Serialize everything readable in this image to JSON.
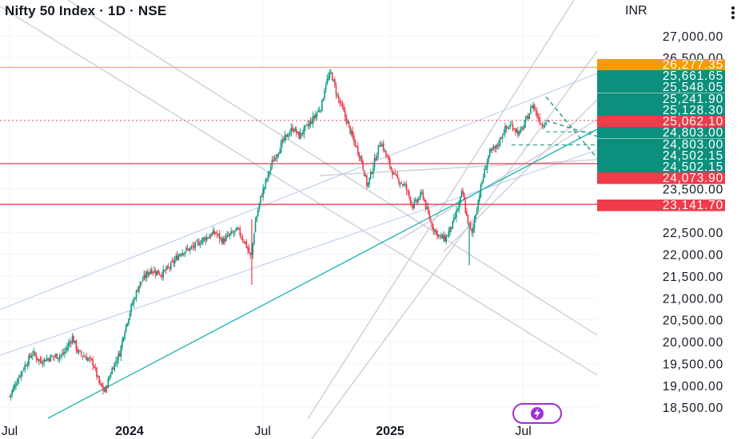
{
  "header": {
    "title": "Nifty 50 Index · 1D · NSE",
    "currency": "INR"
  },
  "chart_data": {
    "type": "candlestick",
    "title": "Nifty 50 Index · 1D · NSE",
    "xlabel": "",
    "ylabel": "",
    "ylim": [
      18500,
      27150
    ],
    "y_ticks": [
      18500,
      19000,
      19500,
      20000,
      20500,
      21000,
      21500,
      22000,
      22500,
      23500,
      26500,
      27000
    ],
    "y_tick_labels": [
      "18,500.00",
      "19,000.00",
      "19,500.00",
      "20,000.00",
      "20,500.00",
      "21,000.00",
      "21,500.00",
      "22,000.00",
      "22,500.00",
      "23,500.00",
      "26,500.00",
      "27,000.00"
    ],
    "x_tick_labels": [
      {
        "label": "Jul",
        "t": 0.0,
        "bold": false
      },
      {
        "label": "2024",
        "t": 0.315,
        "bold": true
      },
      {
        "label": "Jul",
        "t": 0.665,
        "bold": false
      },
      {
        "label": "2025",
        "t": 1.0,
        "bold": true
      },
      {
        "label": "Jul",
        "t": 1.35,
        "bold": false
      }
    ],
    "price_labels": [
      {
        "value": "26,277.35",
        "color": "#f59a0c"
      },
      {
        "value": "25,661.65",
        "color": "#0c8f7c"
      },
      {
        "value": "25,548.05",
        "color": "#0c8f7c"
      },
      {
        "value": "25,241.90",
        "color": "#0c8f7c"
      },
      {
        "value": "25,128.30",
        "color": "#0c8f7c"
      },
      {
        "value": "25,062.10",
        "color": "#ef3b4a"
      },
      {
        "value": "24,803.00",
        "color": "#0c8f7c"
      },
      {
        "value": "24,803.00",
        "color": "#0c8f7c"
      },
      {
        "value": "24,502.15",
        "color": "#0c8f7c"
      },
      {
        "value": "24,502.15",
        "color": "#0c8f7c"
      },
      {
        "value": "24,073.90",
        "color": "#ef3b4a"
      },
      {
        "value": "23,141.70",
        "color": "#ef3b4a"
      }
    ],
    "horizontal_levels": [
      {
        "value": 26277.35,
        "color": "#f6b94a",
        "style": "solid"
      },
      {
        "value": 25062.1,
        "color": "#ef3b4a",
        "style": "dotted"
      },
      {
        "value": 24073.9,
        "color": "#ef3b4a",
        "style": "solid"
      },
      {
        "value": 23141.7,
        "color": "#ef3b4a",
        "style": "solid"
      }
    ],
    "price_path": [
      [
        0.0,
        18750
      ],
      [
        0.03,
        19300
      ],
      [
        0.06,
        19750
      ],
      [
        0.08,
        19550
      ],
      [
        0.11,
        19650
      ],
      [
        0.14,
        19700
      ],
      [
        0.165,
        20100
      ],
      [
        0.18,
        19750
      ],
      [
        0.2,
        19650
      ],
      [
        0.22,
        19500
      ],
      [
        0.235,
        19050
      ],
      [
        0.25,
        18850
      ],
      [
        0.27,
        19400
      ],
      [
        0.29,
        19750
      ],
      [
        0.3,
        20200
      ],
      [
        0.32,
        20800
      ],
      [
        0.34,
        21300
      ],
      [
        0.37,
        21650
      ],
      [
        0.4,
        21550
      ],
      [
        0.42,
        21700
      ],
      [
        0.45,
        22050
      ],
      [
        0.48,
        22150
      ],
      [
        0.51,
        22350
      ],
      [
        0.54,
        22500
      ],
      [
        0.56,
        22300
      ],
      [
        0.58,
        22450
      ],
      [
        0.6,
        22550
      ],
      [
        0.62,
        22250
      ],
      [
        0.635,
        21900
      ],
      [
        0.645,
        22700
      ],
      [
        0.66,
        23300
      ],
      [
        0.69,
        24100
      ],
      [
        0.72,
        24600
      ],
      [
        0.745,
        24900
      ],
      [
        0.76,
        24700
      ],
      [
        0.79,
        25000
      ],
      [
        0.82,
        25400
      ],
      [
        0.83,
        25900
      ],
      [
        0.845,
        26150
      ],
      [
        0.86,
        25650
      ],
      [
        0.88,
        25200
      ],
      [
        0.9,
        24700
      ],
      [
        0.925,
        24150
      ],
      [
        0.94,
        23550
      ],
      [
        0.955,
        24000
      ],
      [
        0.975,
        24600
      ],
      [
        0.99,
        24250
      ],
      [
        1.01,
        23800
      ],
      [
        1.04,
        23550
      ],
      [
        1.06,
        23100
      ],
      [
        1.085,
        23400
      ],
      [
        1.095,
        23050
      ],
      [
        1.11,
        22650
      ],
      [
        1.13,
        22400
      ],
      [
        1.145,
        22350
      ],
      [
        1.165,
        22700
      ],
      [
        1.18,
        23100
      ],
      [
        1.19,
        23450
      ],
      [
        1.2,
        22900
      ],
      [
        1.215,
        22450
      ],
      [
        1.225,
        22950
      ],
      [
        1.24,
        23600
      ],
      [
        1.26,
        24300
      ],
      [
        1.28,
        24450
      ],
      [
        1.3,
        24850
      ],
      [
        1.32,
        24950
      ],
      [
        1.34,
        24750
      ],
      [
        1.36,
        25100
      ],
      [
        1.375,
        25450
      ],
      [
        1.385,
        25200
      ],
      [
        1.4,
        24950
      ],
      [
        1.41,
        25062
      ]
    ],
    "projection": [
      [
        1.41,
        25062
      ],
      [
        1.47,
        24650
      ],
      [
        1.52,
        24400
      ]
    ],
    "notes_levels_teal_zone": [
      24803,
      24502.15
    ]
  }
}
